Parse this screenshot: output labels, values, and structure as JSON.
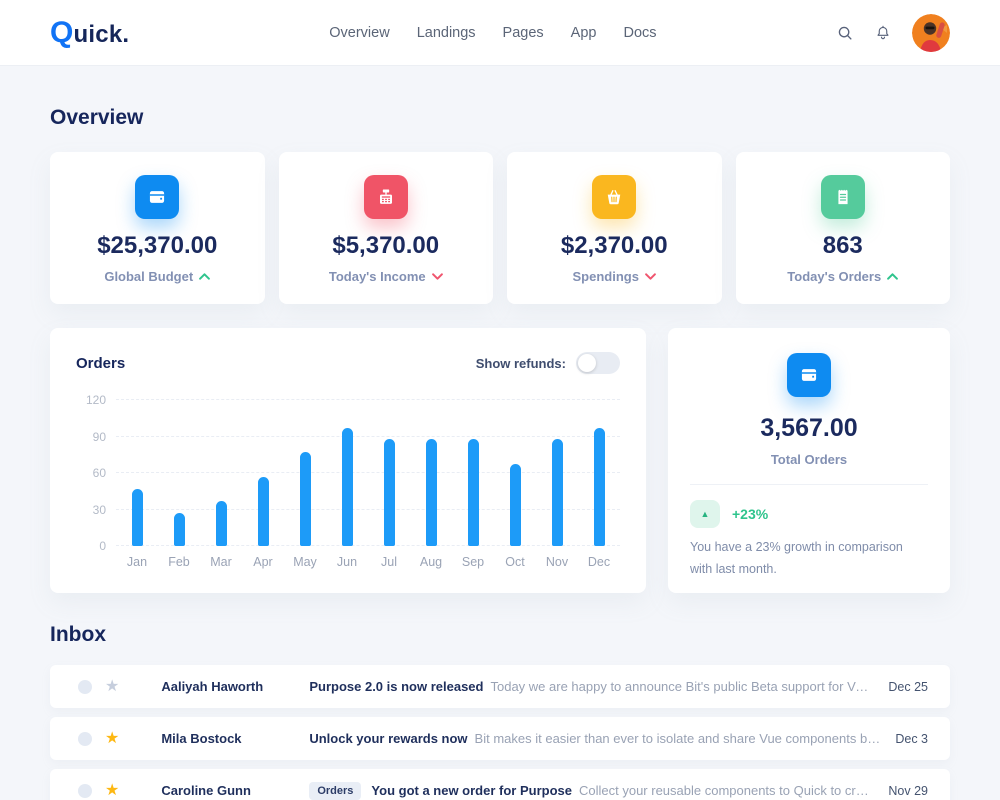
{
  "header": {
    "logo_accent": "Q",
    "logo_rest": "uick.",
    "nav_items": [
      {
        "label": "Overview"
      },
      {
        "label": "Landings"
      },
      {
        "label": "Pages"
      },
      {
        "label": "App"
      },
      {
        "label": "Docs"
      }
    ],
    "icons": {
      "search": "search-icon",
      "notifications": "bell-icon",
      "avatar": "user-avatar"
    }
  },
  "overview": {
    "title": "Overview",
    "cards": [
      {
        "icon": "wallet-icon",
        "color": "#0e8bf1",
        "value": "$25,370.00",
        "label": "Global Budget",
        "trend": "up"
      },
      {
        "icon": "cash-register-icon",
        "color": "#f05467",
        "value": "$5,370.00",
        "label": "Today's Income",
        "trend": "down"
      },
      {
        "icon": "basket-icon",
        "color": "#fab71f",
        "value": "$2,370.00",
        "label": "Spendings",
        "trend": "down"
      },
      {
        "icon": "receipt-icon",
        "color": "#55cb9c",
        "value": "863",
        "label": "Today's Orders",
        "trend": "up"
      }
    ]
  },
  "orders_panel": {
    "title": "Orders",
    "toggle_label": "Show refunds:",
    "toggle_on": false
  },
  "chart_data": {
    "type": "bar",
    "title": "Orders",
    "categories": [
      "Jan",
      "Feb",
      "Mar",
      "Apr",
      "May",
      "Jun",
      "Jul",
      "Aug",
      "Sep",
      "Oct",
      "Nov",
      "Dec"
    ],
    "values": [
      47,
      27,
      37,
      57,
      77,
      97,
      88,
      88,
      88,
      67,
      88,
      97
    ],
    "xlabel": "",
    "ylabel": "",
    "ylim": [
      0,
      120
    ],
    "yticks": [
      0,
      30,
      60,
      90,
      120
    ],
    "bar_color": "#1d9bf8",
    "grid": true,
    "legend": false
  },
  "total_orders": {
    "value": "3,567.00",
    "label": "Total Orders",
    "change": "+23%",
    "description": "You have a 23% growth in comparison with last month.",
    "icon": "wallet-icon",
    "icon_color": "#0e8bf1"
  },
  "inbox": {
    "title": "Inbox",
    "rows": [
      {
        "sender": "Aaliyah Haworth",
        "badge": "",
        "subject": "Purpose 2.0 is now released",
        "preview": "Today we are happy to announce Bit's public Beta support for Vue co...",
        "date": "Dec 25",
        "starred": false
      },
      {
        "sender": "Mila Bostock",
        "badge": "",
        "subject": "Unlock your rewards now",
        "preview": "Bit makes it easier than ever to isolate and share Vue components betw...",
        "date": "Dec 3",
        "starred": true
      },
      {
        "sender": "Caroline Gunn",
        "badge": "Orders",
        "subject": "You got a new order for Purpose",
        "preview": "Collect your reusable components to Quick to create your very o...",
        "date": "Nov 29",
        "starred": true
      }
    ]
  },
  "colors": {
    "accent_blue": "#0e8bf1",
    "bar_blue": "#1d9bf8",
    "negative_red": "#f0556e",
    "positive_green": "#2fc48d",
    "star_gold": "#fdb813",
    "navy_text": "#1b2a5e"
  }
}
